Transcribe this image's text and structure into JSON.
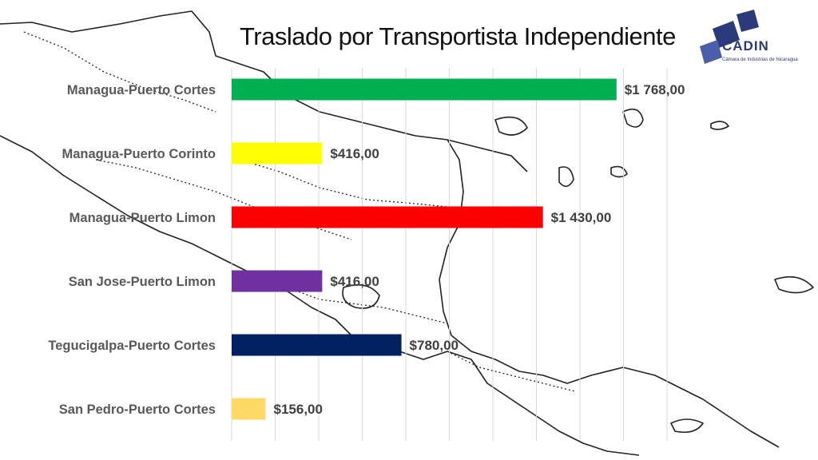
{
  "title": "Traslado por Transportista Independiente",
  "logo": {
    "name": "CADIN",
    "subtitle": "Cámara de Industrias de Nicaragua"
  },
  "chart_data": {
    "type": "bar",
    "orientation": "horizontal",
    "categories": [
      "Managua-Puerto Cortes",
      "Managua-Puerto Corinto",
      "Managua-Puerto Limon",
      "San Jose-Puerto Limon",
      "Tegucigalpa-Puerto Cortes",
      "San Pedro-Puerto Cortes"
    ],
    "values": [
      1768,
      416,
      1430,
      416,
      780,
      156
    ],
    "value_labels": [
      "$1 768,00",
      "$416,00",
      "$1 430,00",
      "$416,00",
      "$780,00",
      "$156,00"
    ],
    "colors": [
      "#00b050",
      "#ffff00",
      "#ff0000",
      "#7030a0",
      "#002060",
      "#ffd966"
    ],
    "title": "Traslado por Transportista Independiente",
    "xlabel": "",
    "ylabel": "",
    "xlim": [
      0,
      2000
    ],
    "grid": true,
    "legend": "none"
  }
}
